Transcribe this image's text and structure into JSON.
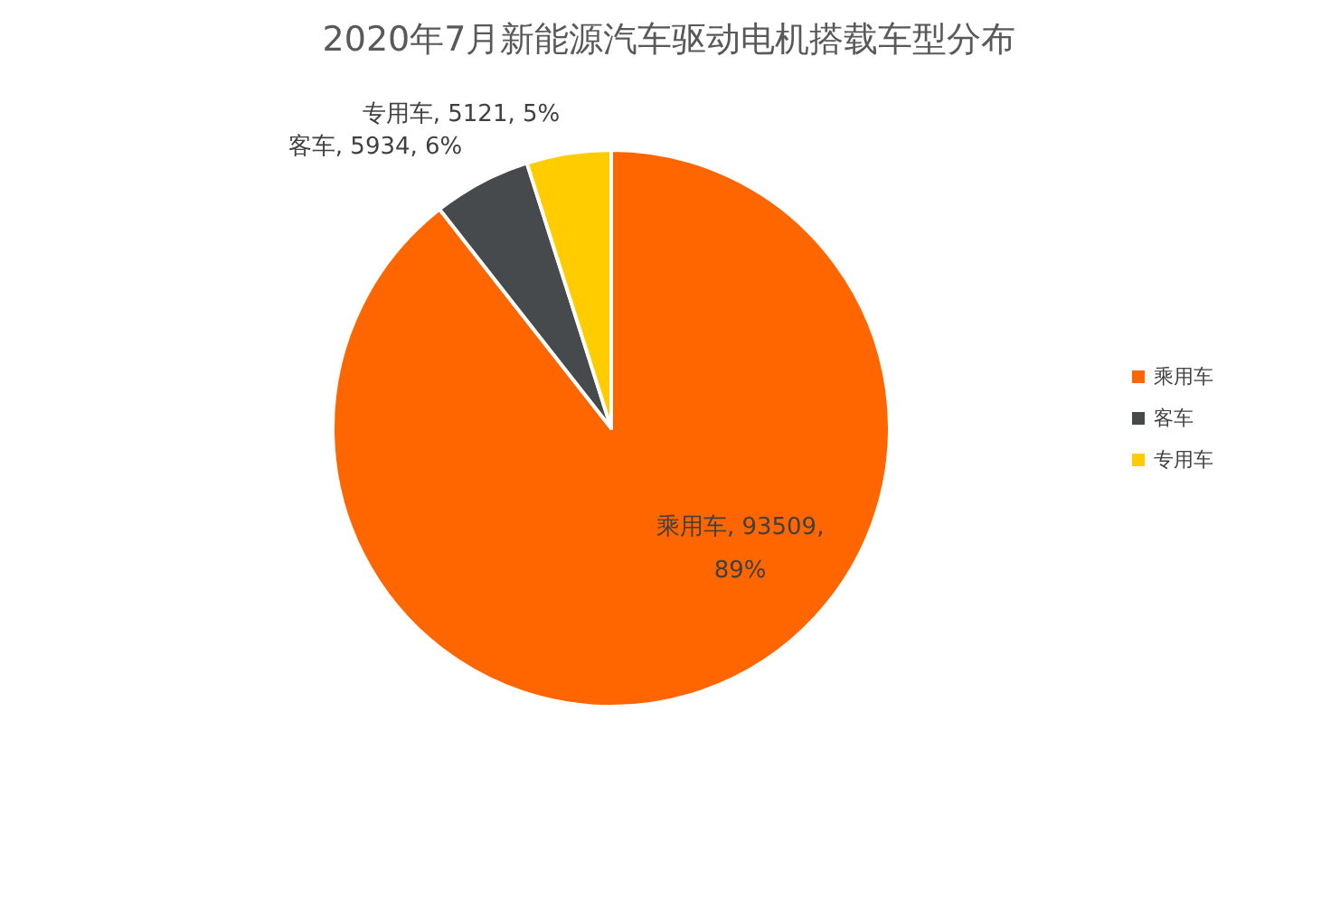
{
  "chart_data": {
    "type": "pie",
    "title": "2020年7月新能源汽车驱动电机搭载车型分布",
    "categories": [
      "乘用车",
      "客车",
      "专用车"
    ],
    "values": [
      93509,
      5934,
      5121
    ],
    "value_labels": [
      "乘用车, 93509, 89%",
      "客车, 5934, 6%",
      "专用车, 5121, 5%"
    ],
    "colors": [
      "#ff6600",
      "#474a4d",
      "#ffcc00"
    ],
    "legend": "right"
  }
}
